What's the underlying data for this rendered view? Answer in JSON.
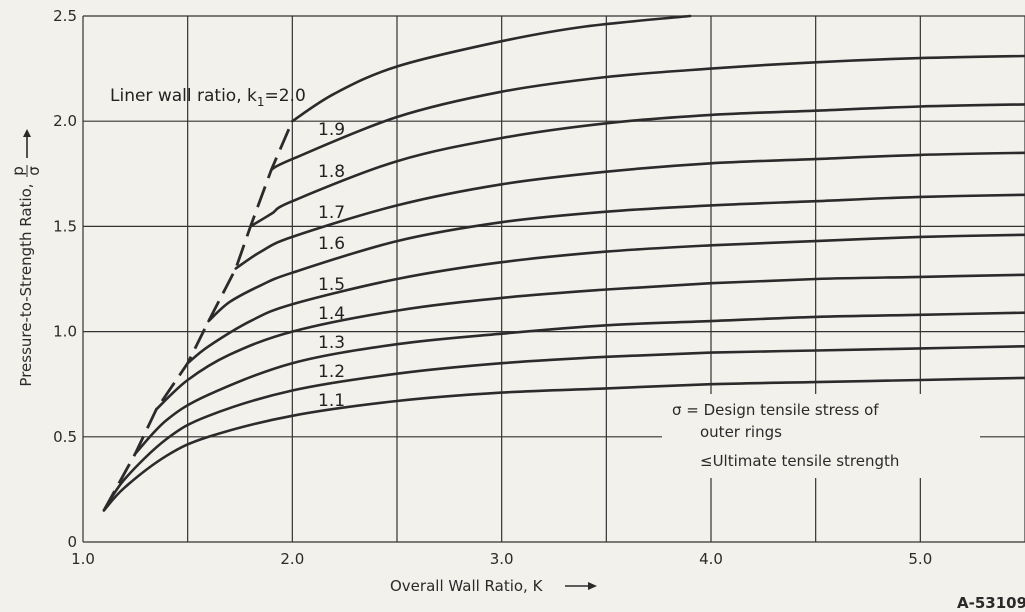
{
  "chart_data": {
    "type": "line",
    "xlabel": "Overall Wall Ratio, K",
    "ylabel": "Pressure-to-Strength Ratio,",
    "ylabel_fraction": {
      "numerator": "p",
      "denominator": "σ"
    },
    "xlim": [
      1.0,
      5.5
    ],
    "ylim": [
      0,
      2.5
    ],
    "x_ticks": [
      "1.0",
      "2.0",
      "3.0",
      "4.0",
      "5.0"
    ],
    "y_ticks": [
      "0",
      "0.5",
      "1.0",
      "1.5",
      "2.0",
      "2.5"
    ],
    "grid": true,
    "curve_title": "Liner wall ratio, k",
    "curve_title_subscript": "1",
    "series": [
      {
        "name": "1.1",
        "label": "1.1",
        "x": [
          1.1,
          1.2,
          1.4,
          1.6,
          2.0,
          2.5,
          3.0,
          3.5,
          4.0,
          4.5,
          5.0,
          5.5
        ],
        "y": [
          0.15,
          0.26,
          0.41,
          0.5,
          0.6,
          0.67,
          0.71,
          0.73,
          0.75,
          0.76,
          0.77,
          0.78
        ]
      },
      {
        "name": "1.2",
        "label": "1.2",
        "x": [
          1.1,
          1.2,
          1.4,
          1.6,
          2.0,
          2.5,
          3.0,
          3.5,
          4.0,
          4.5,
          5.0,
          5.5
        ],
        "y": [
          0.15,
          0.3,
          0.49,
          0.6,
          0.72,
          0.8,
          0.85,
          0.88,
          0.9,
          0.91,
          0.92,
          0.93
        ]
      },
      {
        "name": "1.3",
        "label": "1.3",
        "x": [
          1.25,
          1.4,
          1.6,
          2.0,
          2.5,
          3.0,
          3.5,
          4.0,
          4.5,
          5.0,
          5.5
        ],
        "y": [
          0.42,
          0.58,
          0.7,
          0.85,
          0.94,
          0.99,
          1.03,
          1.05,
          1.07,
          1.08,
          1.09
        ]
      },
      {
        "name": "1.4",
        "label": "1.4",
        "x": [
          1.35,
          1.5,
          1.7,
          2.0,
          2.5,
          3.0,
          3.5,
          4.0,
          4.5,
          5.0,
          5.5
        ],
        "y": [
          0.63,
          0.77,
          0.89,
          1.0,
          1.1,
          1.16,
          1.2,
          1.23,
          1.25,
          1.26,
          1.27
        ]
      },
      {
        "name": "1.5",
        "label": "1.5",
        "x": [
          1.5,
          1.6,
          1.8,
          2.0,
          2.5,
          3.0,
          3.5,
          4.0,
          4.5,
          5.0,
          5.5
        ],
        "y": [
          0.85,
          0.93,
          1.05,
          1.13,
          1.25,
          1.33,
          1.38,
          1.41,
          1.43,
          1.45,
          1.46
        ]
      },
      {
        "name": "1.6",
        "label": "1.6",
        "x": [
          1.6,
          1.7,
          1.85,
          2.0,
          2.5,
          3.0,
          3.5,
          4.0,
          4.5,
          5.0,
          5.5
        ],
        "y": [
          1.05,
          1.14,
          1.22,
          1.28,
          1.43,
          1.52,
          1.57,
          1.6,
          1.62,
          1.64,
          1.65
        ]
      },
      {
        "name": "1.7",
        "label": "1.7",
        "x": [
          1.73,
          1.85,
          2.0,
          2.5,
          3.0,
          3.5,
          4.0,
          4.5,
          5.0,
          5.5
        ],
        "y": [
          1.3,
          1.38,
          1.45,
          1.6,
          1.7,
          1.76,
          1.8,
          1.82,
          1.84,
          1.85
        ]
      },
      {
        "name": "1.8",
        "label": "1.8",
        "x": [
          1.8,
          1.9,
          2.0,
          2.5,
          3.0,
          3.5,
          4.0,
          4.5,
          5.0,
          5.5
        ],
        "y": [
          1.5,
          1.56,
          1.62,
          1.81,
          1.92,
          1.99,
          2.03,
          2.05,
          2.07,
          2.08
        ]
      },
      {
        "name": "1.9",
        "label": "1.9",
        "x": [
          1.9,
          2.0,
          2.5,
          3.0,
          3.5,
          4.0,
          4.5,
          5.0,
          5.5
        ],
        "y": [
          1.77,
          1.82,
          2.02,
          2.14,
          2.21,
          2.25,
          2.28,
          2.3,
          2.31
        ]
      },
      {
        "name": "2.0",
        "label": "2.0",
        "x": [
          2.0,
          2.2,
          2.5,
          3.0,
          3.4,
          3.9
        ],
        "y": [
          2.0,
          2.13,
          2.26,
          2.38,
          2.45,
          2.5
        ]
      }
    ],
    "envelope": {
      "style": "dashed",
      "x": [
        1.1,
        1.25,
        1.35,
        1.5,
        1.6,
        1.73,
        1.8,
        1.9,
        2.0
      ],
      "y": [
        0.15,
        0.42,
        0.63,
        0.85,
        1.05,
        1.3,
        1.5,
        1.77,
        2.0
      ]
    },
    "annotation": {
      "line1": "σ = Design tensile stress of",
      "line2": "outer rings",
      "line3": "≤Ultimate tensile strength"
    },
    "figure_id": "A-53109"
  }
}
